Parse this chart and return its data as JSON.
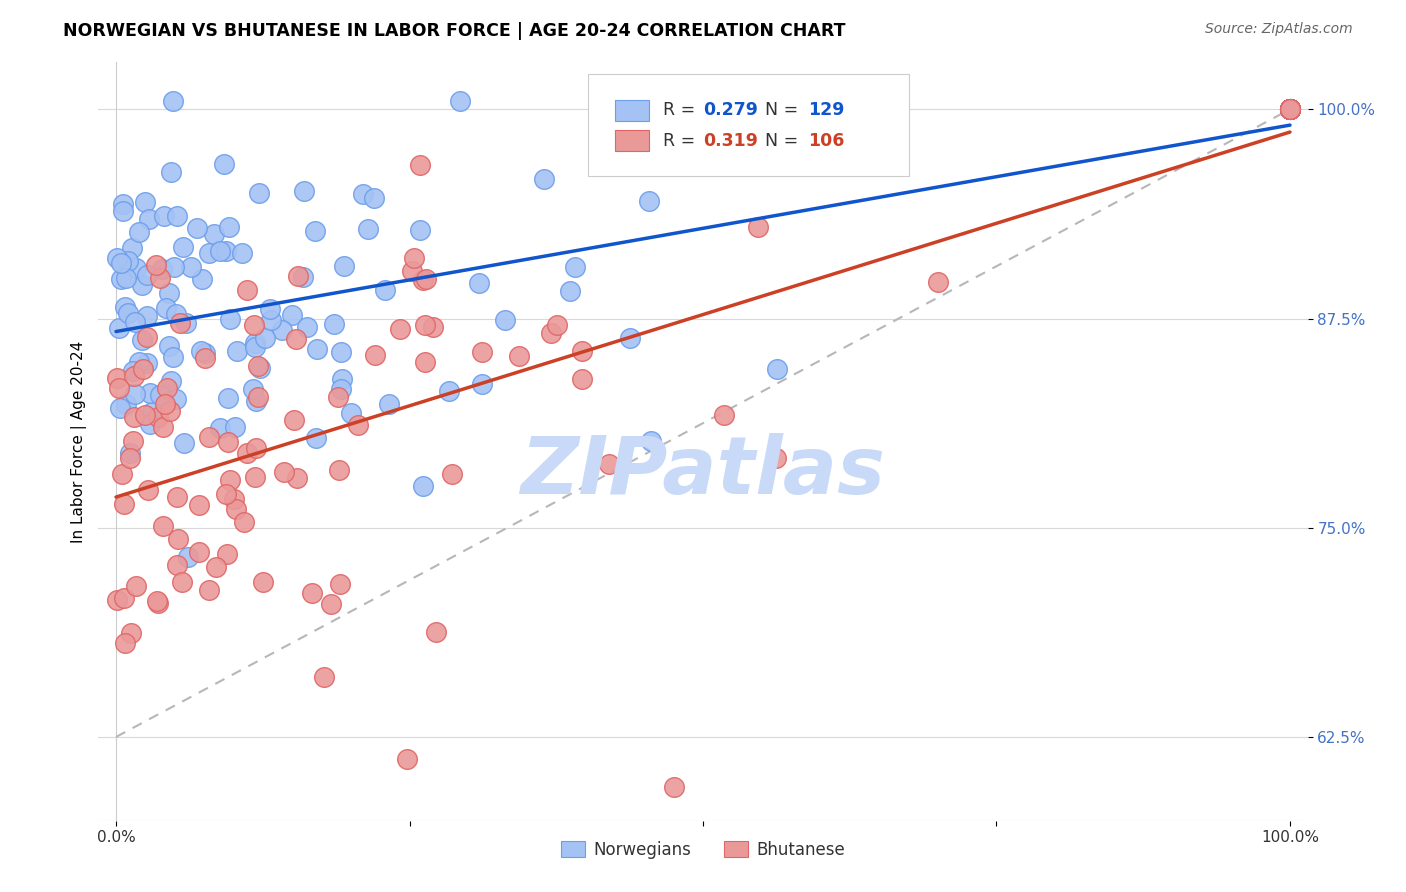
{
  "title": "NORWEGIAN VS BHUTANESE IN LABOR FORCE | AGE 20-24 CORRELATION CHART",
  "source": "Source: ZipAtlas.com",
  "ylabel": "In Labor Force | Age 20-24",
  "ytick_labels": [
    "62.5%",
    "75.0%",
    "87.5%",
    "100.0%"
  ],
  "ytick_values": [
    0.625,
    0.75,
    0.875,
    1.0
  ],
  "blue_color": "#a4c2f4",
  "blue_edge_color": "#6d9eeb",
  "pink_color": "#ea9999",
  "pink_edge_color": "#e06666",
  "blue_line_color": "#1155cc",
  "pink_line_color": "#cc4125",
  "dashed_line_color": "#b7b7b7",
  "legend_blue_R": "0.279",
  "legend_blue_N": "129",
  "legend_pink_R": "0.319",
  "legend_pink_N": "106",
  "legend_R_color": "#333333",
  "legend_blue_val_color": "#1155cc",
  "legend_pink_val_color": "#cc4125",
  "watermark": "ZIPatlas",
  "watermark_color": "#c9daf8",
  "title_color": "#000000",
  "source_color": "#666666",
  "ylabel_color": "#000000",
  "ytick_color": "#4472c4",
  "xtick_color": "#333333",
  "grid_color": "#d9d9d9",
  "spine_color": "#cccccc"
}
